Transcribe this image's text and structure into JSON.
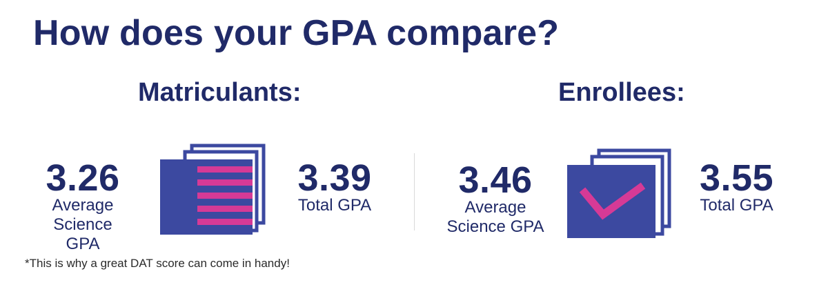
{
  "title": "How does your GPA compare?",
  "colors": {
    "navy": "#202a68",
    "card_blue": "#3c49a0",
    "accent_pink": "#d63a96"
  },
  "sections": [
    {
      "heading": "Matriculants:",
      "icon": "document-stack-icon",
      "science_gpa": {
        "value": "3.26",
        "label_line1": "Average",
        "label_line2": "Science GPA"
      },
      "total_gpa": {
        "value": "3.39",
        "label": "Total GPA"
      }
    },
    {
      "heading": "Enrollees:",
      "icon": "checkmark-stack-icon",
      "science_gpa": {
        "value": "3.46",
        "label_line1": "Average",
        "label_line2": "Science GPA"
      },
      "total_gpa": {
        "value": "3.55",
        "label": "Total GPA"
      }
    }
  ],
  "footnote": "*This is why a great DAT score can come in handy!"
}
